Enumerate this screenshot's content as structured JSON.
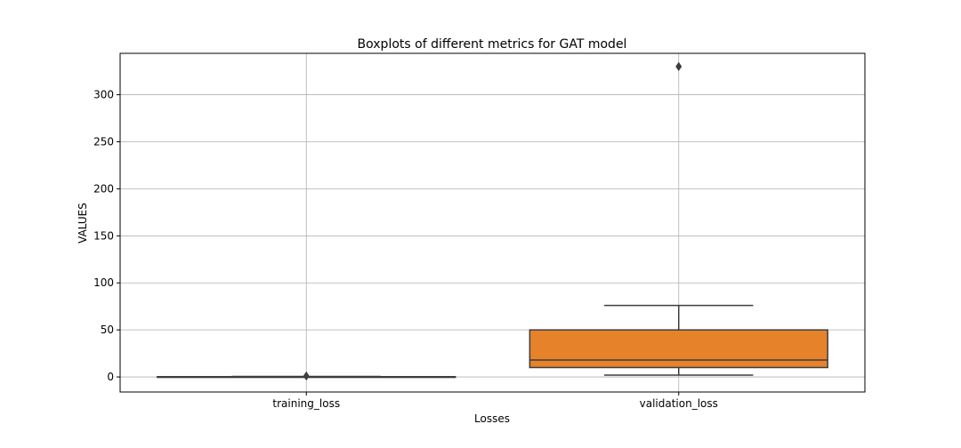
{
  "chart_data": {
    "type": "box",
    "title": "Boxplots of different metrics for GAT model",
    "xlabel": "Losses",
    "ylabel": "VALUES",
    "ylim": [
      -16,
      344
    ],
    "yticks": [
      0,
      50,
      100,
      150,
      200,
      250,
      300
    ],
    "grid": true,
    "categories": [
      "training_loss",
      "validation_loss"
    ],
    "boxes": [
      {
        "name": "training_loss",
        "color": "#1f77b4",
        "whisker_low": 0.05,
        "q1": 0.1,
        "median": 0.2,
        "q3": 0.3,
        "whisker_high": 0.5,
        "outliers": [
          1.0
        ]
      },
      {
        "name": "validation_loss",
        "color": "#e6832a",
        "whisker_low": 2,
        "q1": 10,
        "median": 18,
        "q3": 50,
        "whisker_high": 76,
        "outliers": [
          330
        ]
      }
    ]
  }
}
